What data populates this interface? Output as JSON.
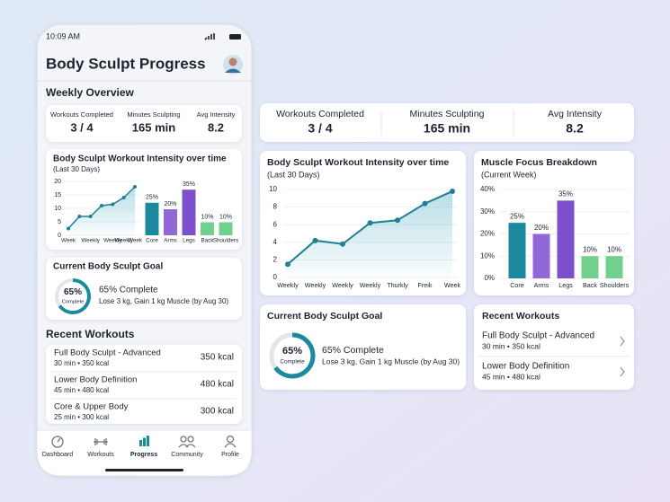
{
  "phone": {
    "status_time": "10:09 AM",
    "title": "Body Sculpt Progress",
    "weekly_overview": {
      "title": "Weekly Overview",
      "stats": [
        {
          "label": "Workouts Completed",
          "value": "3 / 4"
        },
        {
          "label": "Minutes Sculpting",
          "value": "165 min"
        },
        {
          "label": "Avg Intensity",
          "value": "8.2"
        }
      ]
    },
    "intensity_chart": {
      "type": "line",
      "title": "Body Sculpt Workout Intensity over time",
      "subtitle": "(Last 30 Days)",
      "categories": [
        "Week",
        null,
        "Weekly",
        null,
        "Weekly",
        "Weekly",
        "Week"
      ],
      "values": [
        2.5,
        7,
        7,
        11,
        11.5,
        14,
        18
      ],
      "color": "#1f7f93",
      "ylim": [
        0,
        20
      ],
      "yticks": [
        0,
        5,
        10,
        15,
        20
      ],
      "grid": true
    },
    "muscle_chart": {
      "type": "bar",
      "categories": [
        "Core",
        "Arms",
        "Legs",
        "Back",
        "Shoulders"
      ],
      "values": [
        25,
        20,
        35,
        10,
        10
      ],
      "value_labels": [
        "25%",
        "20%",
        "35%",
        "10%",
        "10%"
      ],
      "colors": [
        "#1b8a9e",
        "#9268d8",
        "#7c4fcb",
        "#72d08e",
        "#72d08e"
      ]
    },
    "goal": {
      "title": "Current Body Sculpt Goal",
      "progress": 65,
      "progress_label": "65%",
      "ring_caption": "Complete",
      "headline": "65% Complete",
      "detail": "Lose 3 kg, Gain 1 kg Muscle (by Aug 30)"
    },
    "recent": {
      "title": "Recent Workouts",
      "items": [
        {
          "name": "Full Body Sculpt - Advanced",
          "detail": "30 min • 350 kcal",
          "kcal": "350 kcal"
        },
        {
          "name": "Lower Body Definition",
          "detail": "45 min • 480 kcal",
          "kcal": "480 kcal"
        },
        {
          "name": "Core & Upper Body",
          "detail": "25 min • 300 kcal",
          "kcal": "300 kcal"
        }
      ]
    },
    "nav": {
      "items": [
        "Dashboard",
        "Workouts",
        "Progress",
        "Community",
        "Profile"
      ],
      "active": 2
    }
  },
  "dashboard": {
    "stats": [
      {
        "label": "Workouts Completed",
        "value": "3 / 4"
      },
      {
        "label": "Minutes Sculpting",
        "value": "165 min"
      },
      {
        "label": "Avg Intensity",
        "value": "8.2"
      }
    ],
    "intensity_chart": {
      "type": "line",
      "title": "Body Sculpt Workout Intensity over time",
      "subtitle": "(Last 30 Days)",
      "categories": [
        "Weekly",
        "Weekly",
        "Weekly",
        "Weekly",
        "Thurkly",
        "Freik",
        "Week"
      ],
      "values": [
        1.5,
        4.2,
        3.8,
        6.2,
        6.5,
        8.4,
        9.8
      ],
      "color": "#1f7f93",
      "ylim": [
        0,
        10
      ],
      "yticks": [
        0,
        2,
        4,
        6,
        8,
        10
      ],
      "grid": true
    },
    "muscle_chart": {
      "type": "bar",
      "title": "Muscle Focus Breakdown",
      "subtitle": "(Current Week)",
      "categories": [
        "Core",
        "Arms",
        "Legs",
        "Back",
        "Shoulders"
      ],
      "values": [
        25,
        20,
        35,
        10,
        10
      ],
      "value_labels": [
        "25%",
        "20%",
        "35%",
        "10%",
        "10%"
      ],
      "colors": [
        "#1b8a9e",
        "#9268d8",
        "#7c4fcb",
        "#72d08e",
        "#72d08e"
      ],
      "ylim": [
        0,
        40
      ],
      "yticks": [
        {
          "value": 0,
          "label": "0%"
        },
        {
          "value": 10,
          "label": "10%"
        },
        {
          "value": 20,
          "label": "20%"
        },
        {
          "value": 30,
          "label": "30%"
        },
        {
          "value": 40,
          "label": "40%"
        }
      ],
      "grid": true
    },
    "goal": {
      "title": "Current Body Sculpt Goal",
      "progress": 65,
      "progress_label": "65%",
      "ring_caption": "Complete",
      "headline": "65% Complete",
      "detail": "Lose 3 kg, Gain 1 kg Muscle (by Aug 30)"
    },
    "recent": {
      "title": "Recent Workouts",
      "items": [
        {
          "name": "Full Body Sculpt - Advanced",
          "detail": "30 min • 350 kcal"
        },
        {
          "name": "Lower Body Definition",
          "detail": "45 min • 480 kcal"
        }
      ]
    }
  }
}
